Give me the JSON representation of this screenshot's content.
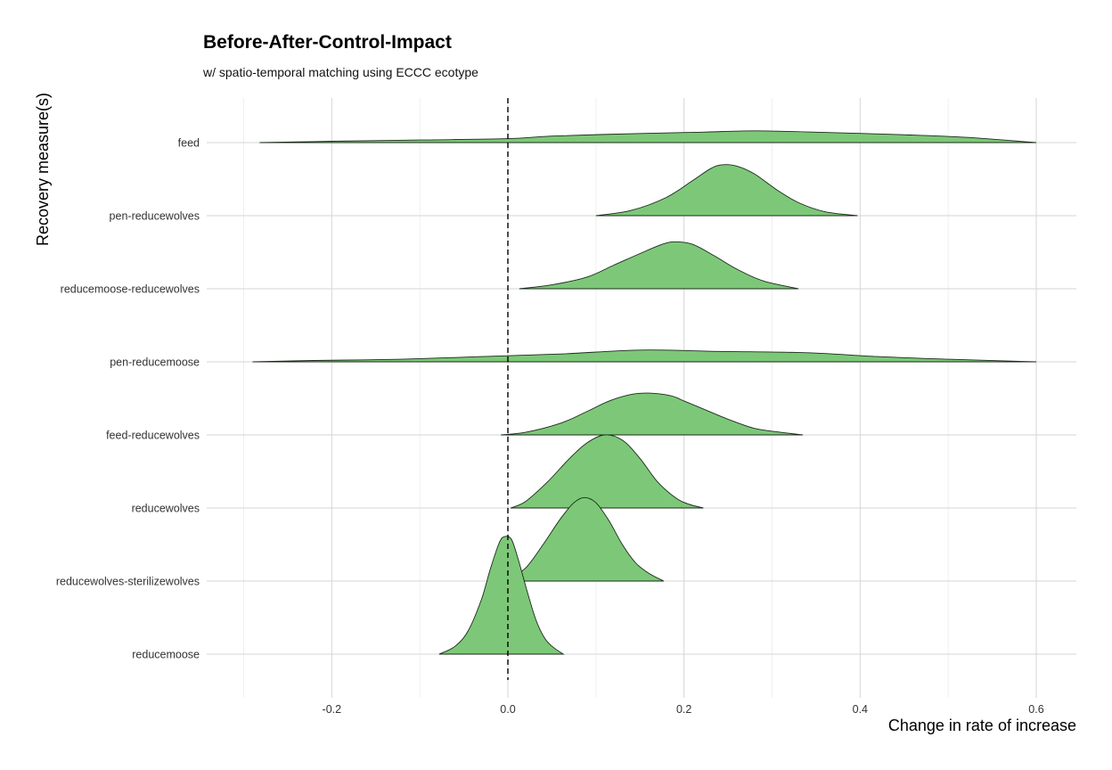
{
  "chart_data": {
    "type": "ridgeline",
    "title": "Before-After-Control-Impact",
    "subtitle": "w/ spatio-temporal matching using ECCC ecotype",
    "xlabel": "Change in rate of increase",
    "ylabel": "Recovery measure(s)",
    "xlim": [
      -0.3,
      0.64
    ],
    "x_ticks": [
      -0.2,
      0.0,
      0.2,
      0.4,
      0.6
    ],
    "x_tick_labels": [
      "-0.2",
      "0.0",
      "0.2",
      "0.4",
      "0.6"
    ],
    "reference_line": {
      "x": 0.0,
      "style": "dashed"
    },
    "grid": true,
    "fill_color": "#7dc878",
    "line_color": "#1a2a1a",
    "categories": [
      "reducemoose",
      "reducewolves-sterilizewolves",
      "reducewolves",
      "feed-reducewolves",
      "pen-reducemoose",
      "reducemoose-reducewolves",
      "pen-reducewolves",
      "feed"
    ],
    "series": [
      {
        "category": "reducemoose",
        "min": -0.078,
        "max": 0.063,
        "mode": -0.007,
        "peak": 0.9,
        "profile": [
          [
            -0.078,
            0.0
          ],
          [
            -0.06,
            0.06
          ],
          [
            -0.045,
            0.18
          ],
          [
            -0.03,
            0.42
          ],
          [
            -0.02,
            0.65
          ],
          [
            -0.01,
            0.85
          ],
          [
            -0.004,
            0.9
          ],
          [
            0.004,
            0.88
          ],
          [
            0.012,
            0.72
          ],
          [
            0.022,
            0.48
          ],
          [
            0.032,
            0.26
          ],
          [
            0.042,
            0.12
          ],
          [
            0.052,
            0.05
          ],
          [
            0.063,
            0.0
          ]
        ]
      },
      {
        "category": "reducewolves-sterilizewolves",
        "min": -0.015,
        "max": 0.177,
        "mode": 0.087,
        "peak": 0.64,
        "profile": [
          [
            -0.015,
            0.0
          ],
          [
            0.0,
            0.02
          ],
          [
            0.02,
            0.1
          ],
          [
            0.04,
            0.28
          ],
          [
            0.06,
            0.48
          ],
          [
            0.075,
            0.6
          ],
          [
            0.087,
            0.64
          ],
          [
            0.1,
            0.6
          ],
          [
            0.115,
            0.46
          ],
          [
            0.13,
            0.28
          ],
          [
            0.145,
            0.14
          ],
          [
            0.16,
            0.06
          ],
          [
            0.177,
            0.0
          ]
        ]
      },
      {
        "category": "reducewolves",
        "min": 0.003,
        "max": 0.222,
        "mode": 0.11,
        "peak": 0.56,
        "profile": [
          [
            0.003,
            0.0
          ],
          [
            0.02,
            0.05
          ],
          [
            0.045,
            0.2
          ],
          [
            0.07,
            0.38
          ],
          [
            0.09,
            0.5
          ],
          [
            0.11,
            0.56
          ],
          [
            0.13,
            0.52
          ],
          [
            0.15,
            0.38
          ],
          [
            0.17,
            0.2
          ],
          [
            0.19,
            0.08
          ],
          [
            0.205,
            0.03
          ],
          [
            0.222,
            0.0
          ]
        ]
      },
      {
        "category": "feed-reducewolves",
        "min": -0.008,
        "max": 0.335,
        "mode": 0.15,
        "peak": 0.32,
        "profile": [
          [
            -0.008,
            0.0
          ],
          [
            0.02,
            0.02
          ],
          [
            0.06,
            0.09
          ],
          [
            0.09,
            0.18
          ],
          [
            0.115,
            0.26
          ],
          [
            0.14,
            0.31
          ],
          [
            0.16,
            0.32
          ],
          [
            0.185,
            0.3
          ],
          [
            0.2,
            0.26
          ],
          [
            0.225,
            0.19
          ],
          [
            0.25,
            0.12
          ],
          [
            0.28,
            0.05
          ],
          [
            0.31,
            0.02
          ],
          [
            0.335,
            0.0
          ]
        ]
      },
      {
        "category": "pen-reducemoose",
        "min": -0.29,
        "max": 0.6,
        "mode": 0.15,
        "peak": 0.09,
        "profile": [
          [
            -0.29,
            0.0
          ],
          [
            -0.22,
            0.01
          ],
          [
            -0.12,
            0.02
          ],
          [
            -0.03,
            0.04
          ],
          [
            0.06,
            0.06
          ],
          [
            0.15,
            0.09
          ],
          [
            0.24,
            0.08
          ],
          [
            0.34,
            0.07
          ],
          [
            0.42,
            0.04
          ],
          [
            0.5,
            0.02
          ],
          [
            0.6,
            0.0
          ]
        ]
      },
      {
        "category": "reducemoose-reducewolves",
        "min": 0.013,
        "max": 0.33,
        "mode": 0.19,
        "peak": 0.36,
        "profile": [
          [
            0.013,
            0.0
          ],
          [
            0.05,
            0.03
          ],
          [
            0.09,
            0.09
          ],
          [
            0.12,
            0.18
          ],
          [
            0.15,
            0.27
          ],
          [
            0.175,
            0.34
          ],
          [
            0.19,
            0.36
          ],
          [
            0.21,
            0.34
          ],
          [
            0.235,
            0.25
          ],
          [
            0.26,
            0.15
          ],
          [
            0.29,
            0.06
          ],
          [
            0.33,
            0.0
          ]
        ]
      },
      {
        "category": "pen-reducewolves",
        "min": 0.1,
        "max": 0.397,
        "mode": 0.243,
        "peak": 0.39,
        "profile": [
          [
            0.1,
            0.0
          ],
          [
            0.14,
            0.04
          ],
          [
            0.18,
            0.14
          ],
          [
            0.21,
            0.27
          ],
          [
            0.23,
            0.36
          ],
          [
            0.243,
            0.39
          ],
          [
            0.26,
            0.38
          ],
          [
            0.28,
            0.32
          ],
          [
            0.305,
            0.2
          ],
          [
            0.33,
            0.1
          ],
          [
            0.36,
            0.03
          ],
          [
            0.397,
            0.0
          ]
        ]
      },
      {
        "category": "feed",
        "min": -0.282,
        "max": 0.6,
        "mode": 0.28,
        "peak": 0.09,
        "profile": [
          [
            -0.282,
            0.0
          ],
          [
            -0.2,
            0.01
          ],
          [
            -0.1,
            0.02
          ],
          [
            0.0,
            0.03
          ],
          [
            0.05,
            0.05
          ],
          [
            0.15,
            0.07
          ],
          [
            0.22,
            0.08
          ],
          [
            0.28,
            0.09
          ],
          [
            0.35,
            0.08
          ],
          [
            0.45,
            0.06
          ],
          [
            0.52,
            0.04
          ],
          [
            0.6,
            0.0
          ]
        ]
      }
    ]
  }
}
